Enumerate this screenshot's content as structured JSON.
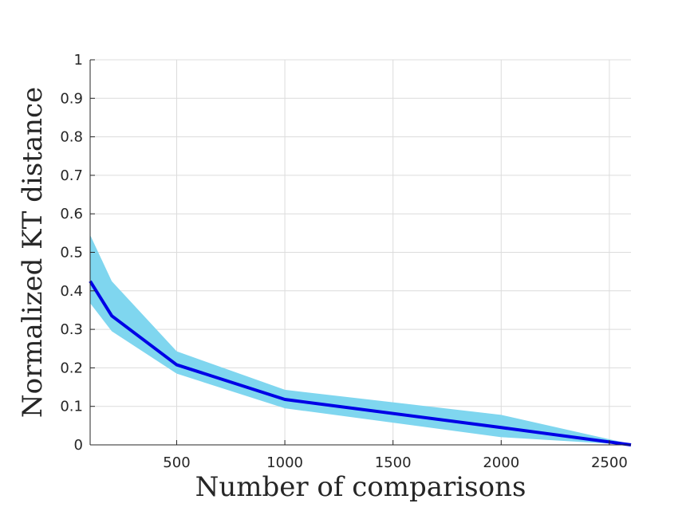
{
  "chart_data": {
    "type": "line",
    "title": "",
    "xlabel": "Number of comparisons",
    "ylabel": "Normalized KT distance",
    "xlim": [
      100,
      2600
    ],
    "ylim": [
      0,
      1
    ],
    "x_ticks": [
      500,
      1000,
      1500,
      2000,
      2500
    ],
    "x_tick_labels": [
      "500",
      "1000",
      "1500",
      "2000",
      "2500"
    ],
    "y_ticks": [
      0,
      0.1,
      0.2,
      0.3,
      0.4,
      0.5,
      0.6,
      0.7,
      0.8,
      0.9,
      1
    ],
    "y_tick_labels": [
      "0",
      "0.1",
      "0.2",
      "0.3",
      "0.4",
      "0.5",
      "0.6",
      "0.7",
      "0.8",
      "0.9",
      "1"
    ],
    "grid": true,
    "x": [
      100,
      200,
      500,
      1000,
      2000,
      2600
    ],
    "series": [
      {
        "values": [
          0.425,
          0.335,
          0.208,
          0.118,
          0.045,
          0.0
        ],
        "upper": [
          0.545,
          0.425,
          0.243,
          0.143,
          0.078,
          0.002
        ],
        "lower": [
          0.368,
          0.295,
          0.185,
          0.095,
          0.02,
          0.0
        ],
        "line_color": "#0000e6",
        "band_color": "#7fd6ef"
      }
    ]
  }
}
